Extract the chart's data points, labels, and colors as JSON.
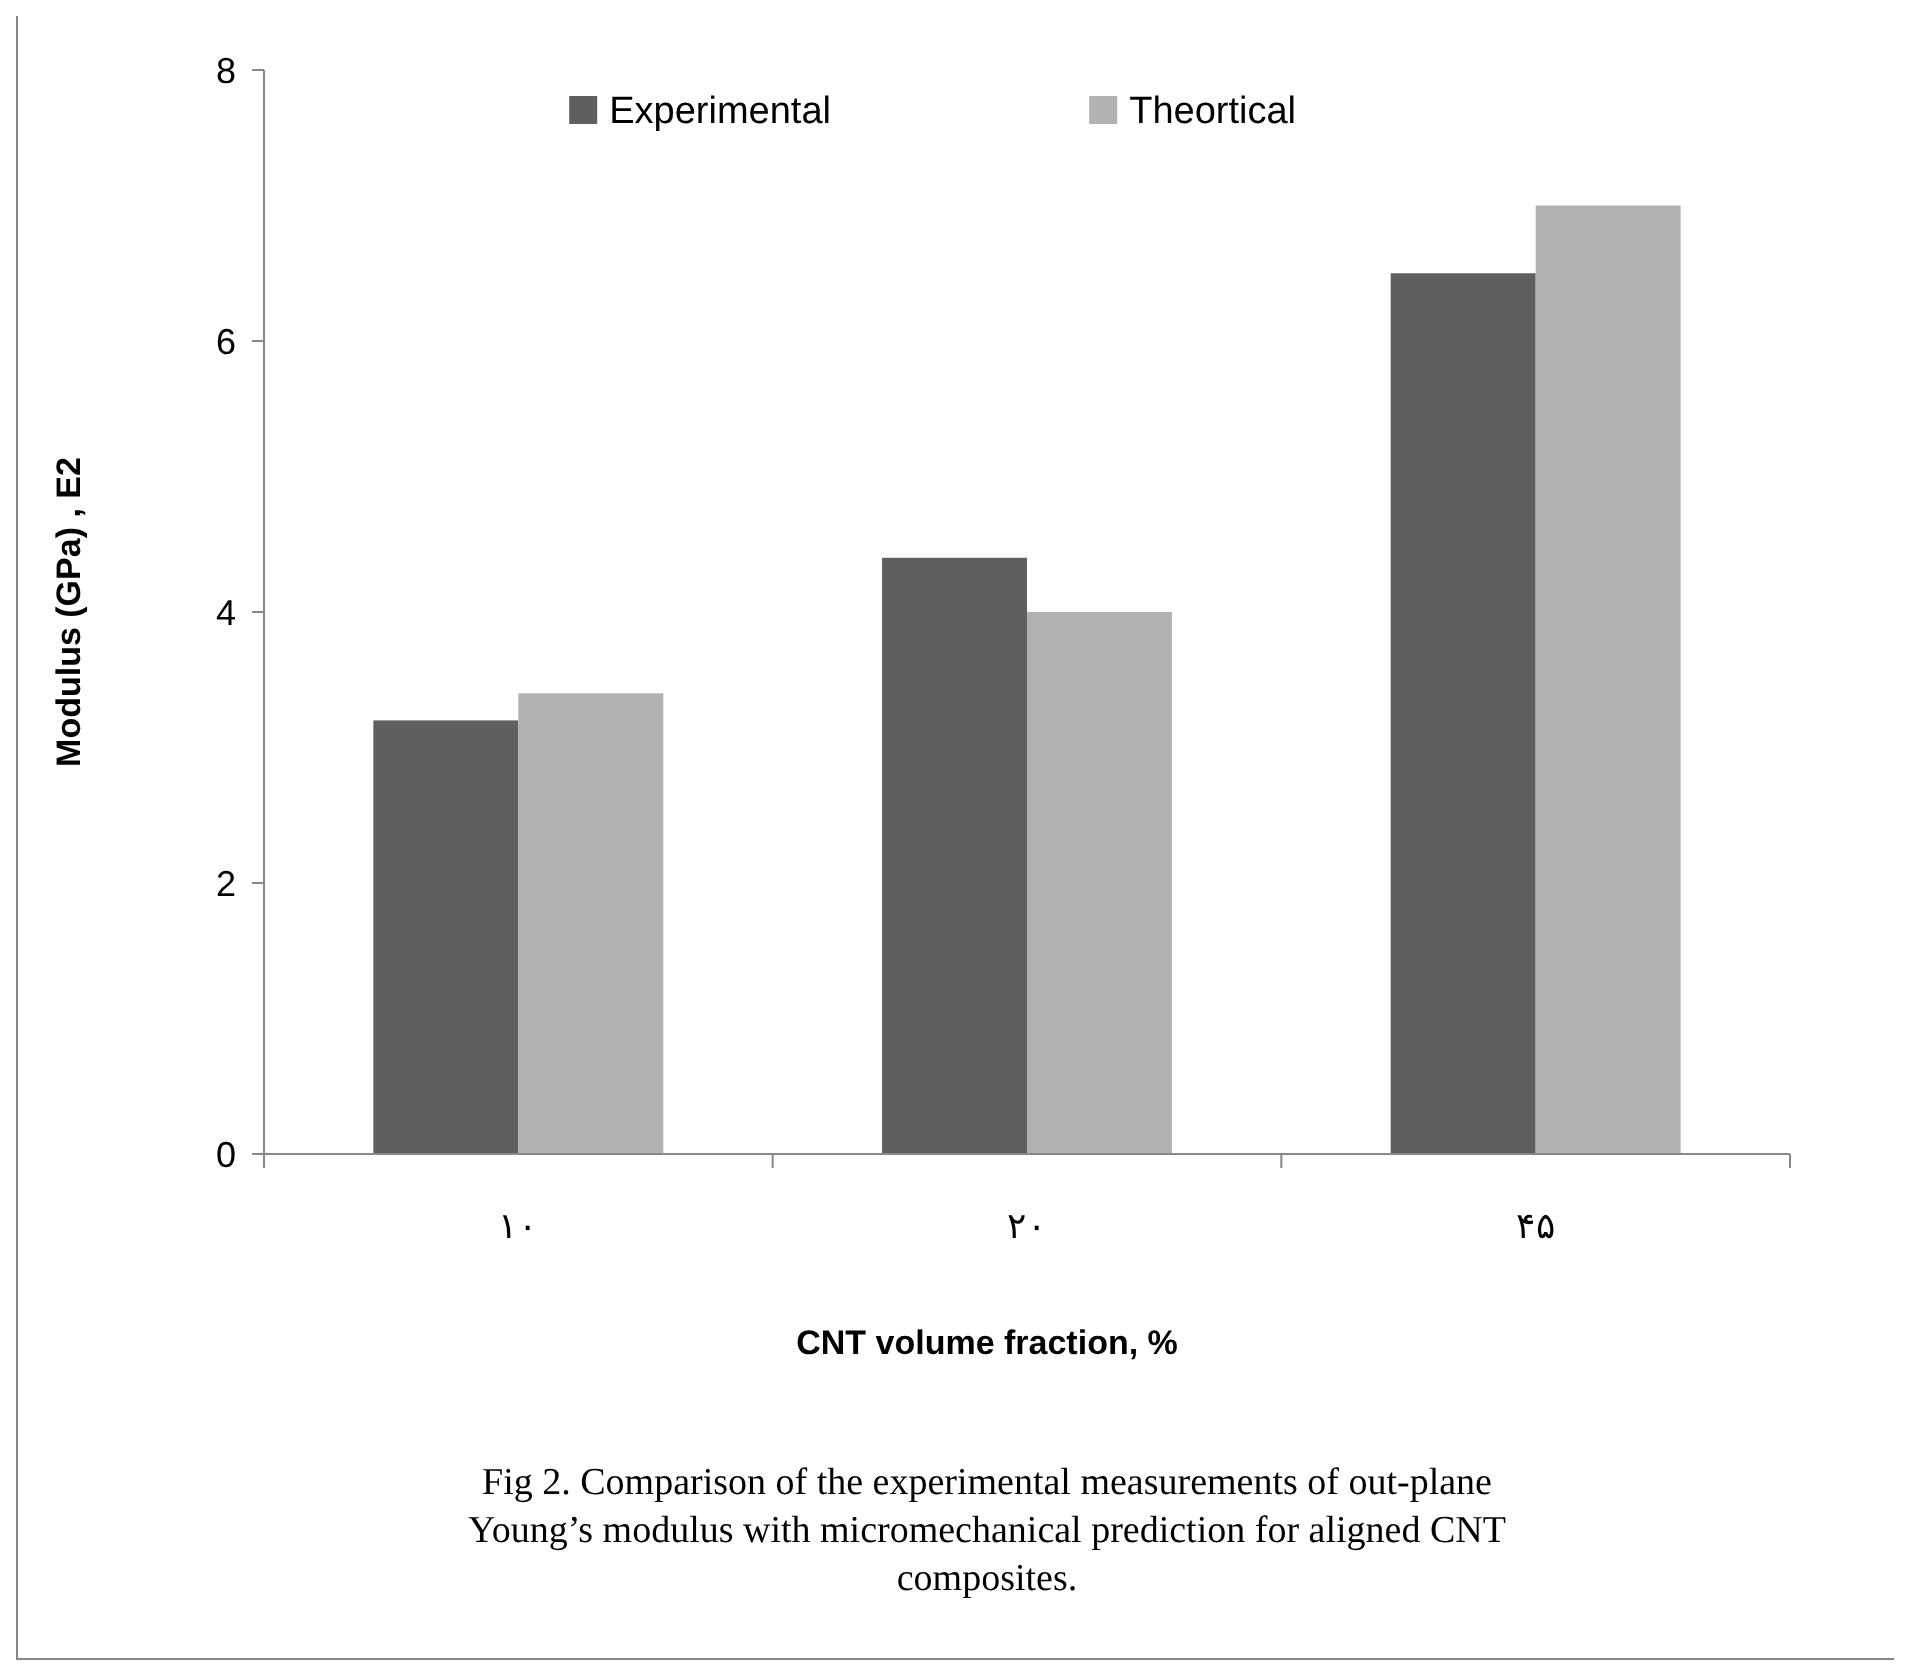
{
  "chart_data": {
    "type": "bar",
    "xlabel": "CNT volume fraction, %",
    "ylabel": "Modulus (GPa) , E2",
    "categories": [
      "١٠",
      "٢٠",
      "۴۵"
    ],
    "series": [
      {
        "name": "Experimental",
        "color": "#5f5f5f",
        "values": [
          3.2,
          4.4,
          6.5
        ]
      },
      {
        "name": "Theortical",
        "color": "#b2b2b2",
        "values": [
          3.4,
          4.0,
          7.0
        ]
      }
    ],
    "ylim": [
      0,
      8
    ],
    "yticks": [
      0,
      2,
      4,
      6,
      8
    ],
    "grid": false,
    "legend": "top",
    "annotations": [
      "Fig 2. Comparison of the experimental measurements of out-plane Young’s modulus with micromechanical prediction for aligned CNT composites."
    ]
  }
}
